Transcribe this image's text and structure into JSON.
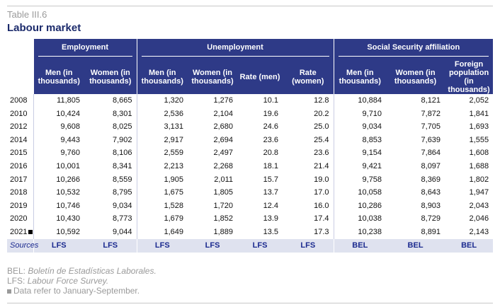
{
  "table_number": "Table III.6",
  "title": "Labour market",
  "groups": {
    "employment": "Employment",
    "unemployment": "Unemployment",
    "social_security": "Social Security affiliation"
  },
  "columns": [
    "Men (in thousands)",
    "Women (in thousands)",
    "Men (in thousands)",
    "Women (in thousands)",
    "Rate (men)",
    "Rate (women)",
    "Men (in thousands)",
    "Women (in thousands)",
    "Foreign population (in thousands)"
  ],
  "rows": [
    {
      "year": "2008",
      "marker": false,
      "values": [
        "11,805",
        "8,665",
        "1,320",
        "1,276",
        "10.1",
        "12.8",
        "10,884",
        "8,121",
        "2,052"
      ]
    },
    {
      "year": "2010",
      "marker": false,
      "values": [
        "10,424",
        "8,301",
        "2,536",
        "2,104",
        "19.6",
        "20.2",
        "9,710",
        "7,872",
        "1,841"
      ]
    },
    {
      "year": "2012",
      "marker": false,
      "values": [
        "9,608",
        "8,025",
        "3,131",
        "2,680",
        "24.6",
        "25.0",
        "9,034",
        "7,705",
        "1,693"
      ]
    },
    {
      "year": "2014",
      "marker": false,
      "values": [
        "9,443",
        "7,902",
        "2,917",
        "2,694",
        "23.6",
        "25.4",
        "8,853",
        "7,639",
        "1,555"
      ]
    },
    {
      "year": "2015",
      "marker": false,
      "values": [
        "9,760",
        "8,106",
        "2,559",
        "2,497",
        "20.8",
        "23.6",
        "9,154",
        "7,864",
        "1,608"
      ]
    },
    {
      "year": "2016",
      "marker": false,
      "values": [
        "10,001",
        "8,341",
        "2,213",
        "2,268",
        "18.1",
        "21.4",
        "9,421",
        "8,097",
        "1,688"
      ]
    },
    {
      "year": "2017",
      "marker": false,
      "values": [
        "10,266",
        "8,559",
        "1,905",
        "2,011",
        "15.7",
        "19.0",
        "9,758",
        "8,369",
        "1,802"
      ]
    },
    {
      "year": "2018",
      "marker": false,
      "values": [
        "10,532",
        "8,795",
        "1,675",
        "1,805",
        "13.7",
        "17.0",
        "10,058",
        "8,643",
        "1,947"
      ]
    },
    {
      "year": "2019",
      "marker": false,
      "values": [
        "10,746",
        "9,034",
        "1,528",
        "1,720",
        "12.4",
        "16.0",
        "10,286",
        "8,903",
        "2,043"
      ]
    },
    {
      "year": "2020",
      "marker": false,
      "values": [
        "10,430",
        "8,773",
        "1,679",
        "1,852",
        "13.9",
        "17.4",
        "10,038",
        "8,729",
        "2,046"
      ]
    },
    {
      "year": "2021",
      "marker": true,
      "values": [
        "10,592",
        "9,044",
        "1,649",
        "1,889",
        "13.5",
        "17.3",
        "10,238",
        "8,891",
        "2,143"
      ]
    }
  ],
  "sources": {
    "label": "Sources",
    "values": [
      "LFS",
      "LFS",
      "LFS",
      "LFS",
      "LFS",
      "LFS",
      "BEL",
      "BEL",
      "BEL"
    ]
  },
  "notes": {
    "bel_abbr": "BEL:",
    "bel_text": "Boletín de Estadísticas Laborales.",
    "lfs_abbr": "LFS:",
    "lfs_text": "Labour Force Survey.",
    "marker_text": "Data refer to January-September."
  },
  "colors": {
    "header_bg": "#2e3a87",
    "title": "#1b2a6b",
    "sources_bg": "#dfe2ef",
    "sources_text": "#1b2a8f"
  }
}
